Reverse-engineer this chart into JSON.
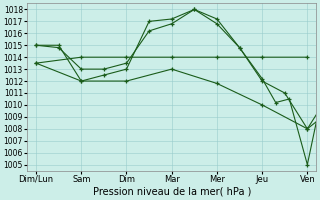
{
  "xlabel": "Pression niveau de la mer( hPa )",
  "xtick_labels": [
    "Dim/Lun",
    "Sam",
    "Dim",
    "Mar",
    "Mer",
    "Jeu",
    "Ven"
  ],
  "ylim": [
    1004.5,
    1018.5
  ],
  "yticks": [
    1005,
    1006,
    1007,
    1008,
    1009,
    1010,
    1011,
    1012,
    1013,
    1014,
    1015,
    1016,
    1017,
    1018
  ],
  "background_color": "#cceee8",
  "grid_color": "#99cccc",
  "line_color": "#1a5c1a",
  "series": [
    {
      "x": [
        0,
        1,
        2,
        3,
        4,
        5,
        6
      ],
      "y": [
        1013.5,
        1014.0,
        1014.0,
        1014.0,
        1014.0,
        1014.0,
        1014.0
      ]
    },
    {
      "x": [
        0,
        0.5,
        1,
        1.5,
        2,
        2.5,
        3,
        3.5,
        4,
        4.5,
        5,
        5.3,
        5.6,
        6,
        6.5
      ],
      "y": [
        1015.0,
        1015.0,
        1012.0,
        1012.5,
        1013.0,
        1017.0,
        1017.2,
        1018.0,
        1016.8,
        1014.8,
        1012.2,
        1010.2,
        1010.5,
        1005.0,
        1014.0
      ]
    },
    {
      "x": [
        0,
        0.5,
        1,
        1.5,
        2,
        2.5,
        3,
        3.5,
        4,
        4.5,
        5,
        5.5,
        6,
        6.5
      ],
      "y": [
        1015.0,
        1014.8,
        1013.0,
        1013.0,
        1013.5,
        1016.2,
        1016.8,
        1018.0,
        1017.2,
        1014.8,
        1012.0,
        1011.0,
        1008.0,
        1009.5
      ]
    },
    {
      "x": [
        0,
        1,
        2,
        3,
        4,
        5,
        6,
        6.5
      ],
      "y": [
        1013.5,
        1012.0,
        1012.0,
        1013.0,
        1011.8,
        1010.0,
        1008.0,
        1011.0
      ]
    }
  ],
  "figsize": [
    3.2,
    2.0
  ],
  "dpi": 100
}
